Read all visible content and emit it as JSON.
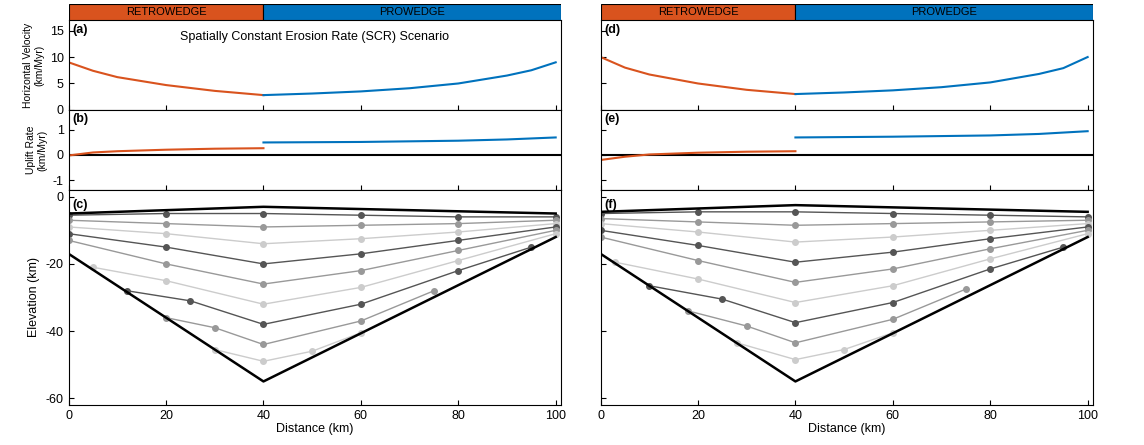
{
  "header": [
    {
      "label": "RETROWEDGE",
      "from": 0,
      "to": 40,
      "color": "#D9531E"
    },
    {
      "label": "PROWEDGE",
      "from": 40,
      "to": 101,
      "color": "#0072BD"
    }
  ],
  "chart_data": [
    {
      "type": "line",
      "title": "Spatially Constant Erosion Rate (SCR) Scenario",
      "annotations": [
        "(a)"
      ],
      "y_label": "Horizontal Velocity\n(km/Myr)",
      "xlim": [
        0,
        101
      ],
      "xticks": [
        0,
        20,
        40,
        60,
        80,
        100
      ],
      "ylim": [
        0,
        17
      ],
      "yticks": [
        0,
        5,
        10,
        15
      ],
      "tick_labels": "y",
      "series": [
        {
          "color": "#D9531E",
          "x": [
            0,
            5,
            10,
            20,
            30,
            40
          ],
          "values": [
            9,
            7.4,
            6.2,
            4.7,
            3.6,
            2.8
          ]
        },
        {
          "color": "#0072BD",
          "x": [
            40,
            50,
            60,
            70,
            80,
            90,
            95,
            100
          ],
          "values": [
            2.8,
            3.1,
            3.5,
            4.1,
            5,
            6.5,
            7.5,
            9
          ]
        }
      ]
    },
    {
      "type": "line",
      "annotations": [
        "(b)"
      ],
      "y_label": "Uplift Rate\n(km/Myr)",
      "xlim": [
        0,
        101
      ],
      "xticks": [
        0,
        20,
        40,
        60,
        80,
        100
      ],
      "ylim": [
        -1.4,
        1.8
      ],
      "yticks": [
        -1,
        0,
        1
      ],
      "tick_labels": "y",
      "series": [
        {
          "color": "#000000",
          "x": [
            0,
            101
          ],
          "values": [
            0,
            0
          ]
        },
        {
          "color": "#D9531E",
          "x": [
            0,
            5,
            10,
            20,
            30,
            40
          ],
          "values": [
            -0.02,
            0.1,
            0.15,
            0.21,
            0.25,
            0.27
          ]
        },
        {
          "color": "#0072BD",
          "x": [
            40,
            60,
            80,
            90,
            100
          ],
          "values": [
            0.5,
            0.52,
            0.57,
            0.62,
            0.7
          ]
        }
      ]
    },
    {
      "type": "line",
      "annotations": [
        "(c)"
      ],
      "x_label": "Distance (km)",
      "y_label": "Elevation (km)",
      "xlim": [
        0,
        101
      ],
      "xticks": [
        0,
        20,
        40,
        60,
        80,
        100
      ],
      "ylim": [
        -62,
        2
      ],
      "yticks": [
        -60,
        -40,
        -20,
        0
      ],
      "tick_labels": true,
      "series": [
        {
          "color": "#555555",
          "marker": "circle",
          "x": [
            0,
            20,
            40,
            60,
            80,
            100
          ],
          "values": [
            -5.5,
            -5,
            -5,
            -5.5,
            -6,
            -6
          ]
        },
        {
          "color": "#999999",
          "marker": "circle",
          "x": [
            0,
            20,
            40,
            60,
            80,
            100
          ],
          "values": [
            -7,
            -8,
            -9,
            -8.5,
            -8,
            -7
          ]
        },
        {
          "color": "#cccccc",
          "marker": "circle",
          "x": [
            0,
            20,
            40,
            60,
            80,
            100
          ],
          "values": [
            -9,
            -11,
            -14,
            -12.5,
            -10.5,
            -8
          ]
        },
        {
          "color": "#555555",
          "marker": "circle",
          "x": [
            0,
            20,
            40,
            60,
            80,
            100
          ],
          "values": [
            -11,
            -15,
            -20,
            -17,
            -13,
            -9
          ]
        },
        {
          "color": "#999999",
          "marker": "circle",
          "x": [
            0,
            20,
            40,
            60,
            80,
            100
          ],
          "values": [
            -13,
            -20,
            -26,
            -22,
            -16,
            -10
          ]
        },
        {
          "color": "#cccccc",
          "marker": "circle",
          "x": [
            5,
            20,
            40,
            60,
            80,
            100
          ],
          "values": [
            -21,
            -25,
            -32,
            -27,
            -19,
            -11
          ]
        },
        {
          "color": "#555555",
          "marker": "circle",
          "x": [
            12,
            25,
            40,
            60,
            80,
            95
          ],
          "values": [
            -28,
            -31,
            -38,
            -32,
            -22,
            -15
          ]
        },
        {
          "color": "#999999",
          "marker": "circle",
          "x": [
            20,
            30,
            40,
            60,
            75
          ],
          "values": [
            -36,
            -39,
            -44,
            -37,
            -28
          ]
        },
        {
          "color": "#cccccc",
          "marker": "circle",
          "x": [
            30,
            40,
            50,
            60
          ],
          "values": [
            -45.5,
            -49,
            -46,
            -40.5
          ]
        },
        {
          "color": "#000000",
          "x": [
            0,
            40,
            100
          ],
          "values": [
            -5,
            -3,
            -5
          ]
        },
        {
          "color": "#000000",
          "x": [
            0,
            40,
            100
          ],
          "values": [
            -17,
            -55,
            -12
          ]
        }
      ]
    },
    {
      "type": "line",
      "annotations": [
        "(d)"
      ],
      "xlim": [
        0,
        101
      ],
      "xticks": [
        0,
        20,
        40,
        60,
        80,
        100
      ],
      "ylim": [
        0,
        17
      ],
      "yticks": [
        0,
        5,
        10,
        15
      ],
      "tick_labels": false,
      "series": [
        {
          "color": "#D9531E",
          "x": [
            0,
            5,
            10,
            20,
            30,
            40
          ],
          "values": [
            10,
            8,
            6.7,
            5,
            3.8,
            3
          ]
        },
        {
          "color": "#0072BD",
          "x": [
            40,
            50,
            60,
            70,
            80,
            90,
            95,
            100
          ],
          "values": [
            3,
            3.3,
            3.7,
            4.3,
            5.2,
            6.8,
            7.9,
            10
          ]
        }
      ]
    },
    {
      "type": "line",
      "annotations": [
        "(e)"
      ],
      "xlim": [
        0,
        101
      ],
      "xticks": [
        0,
        20,
        40,
        60,
        80,
        100
      ],
      "ylim": [
        -1.4,
        1.8
      ],
      "yticks": [
        -1,
        0,
        1
      ],
      "tick_labels": false,
      "series": [
        {
          "color": "#000000",
          "x": [
            0,
            101
          ],
          "values": [
            0,
            0
          ]
        },
        {
          "color": "#D9531E",
          "x": [
            0,
            5,
            10,
            20,
            30,
            40
          ],
          "values": [
            -0.2,
            -0.07,
            0.02,
            0.09,
            0.13,
            0.15
          ]
        },
        {
          "color": "#0072BD",
          "x": [
            40,
            60,
            80,
            90,
            100
          ],
          "values": [
            0.7,
            0.73,
            0.78,
            0.84,
            0.95
          ]
        }
      ]
    },
    {
      "type": "line",
      "annotations": [
        "(f)"
      ],
      "x_label": "Distance (km)",
      "xlim": [
        0,
        101
      ],
      "xticks": [
        0,
        20,
        40,
        60,
        80,
        100
      ],
      "ylim": [
        -62,
        2
      ],
      "yticks": [
        -60,
        -40,
        -20,
        0
      ],
      "tick_labels": "x",
      "series": [
        {
          "color": "#555555",
          "marker": "circle",
          "x": [
            0,
            20,
            40,
            60,
            80,
            100
          ],
          "values": [
            -5,
            -4.5,
            -4.5,
            -5,
            -5.5,
            -6
          ]
        },
        {
          "color": "#999999",
          "marker": "circle",
          "x": [
            0,
            20,
            40,
            60,
            80,
            100
          ],
          "values": [
            -6.5,
            -7.5,
            -8.5,
            -8,
            -7.5,
            -7
          ]
        },
        {
          "color": "#cccccc",
          "marker": "circle",
          "x": [
            0,
            20,
            40,
            60,
            80,
            100
          ],
          "values": [
            -8,
            -10.5,
            -13.5,
            -12,
            -10,
            -8
          ]
        },
        {
          "color": "#555555",
          "marker": "circle",
          "x": [
            0,
            20,
            40,
            60,
            80,
            100
          ],
          "values": [
            -10,
            -14.5,
            -19.5,
            -16.5,
            -12.5,
            -9
          ]
        },
        {
          "color": "#999999",
          "marker": "circle",
          "x": [
            0,
            20,
            40,
            60,
            80,
            100
          ],
          "values": [
            -12,
            -19,
            -25.5,
            -21.5,
            -15.5,
            -10
          ]
        },
        {
          "color": "#cccccc",
          "marker": "circle",
          "x": [
            3,
            20,
            40,
            60,
            80,
            100
          ],
          "values": [
            -19.5,
            -24.5,
            -31.5,
            -26.5,
            -18.5,
            -11
          ]
        },
        {
          "color": "#555555",
          "marker": "circle",
          "x": [
            10,
            25,
            40,
            60,
            80,
            95
          ],
          "values": [
            -26.5,
            -30.5,
            -37.5,
            -31.5,
            -21.5,
            -15
          ]
        },
        {
          "color": "#999999",
          "marker": "circle",
          "x": [
            18,
            30,
            40,
            60,
            75
          ],
          "values": [
            -34,
            -38.5,
            -43.5,
            -36.5,
            -27.5
          ]
        },
        {
          "color": "#cccccc",
          "marker": "circle",
          "x": [
            28,
            40,
            50,
            60
          ],
          "values": [
            -43.5,
            -48.5,
            -45.5,
            -40.5
          ]
        },
        {
          "color": "#000000",
          "x": [
            0,
            40,
            100
          ],
          "values": [
            -4.5,
            -2.5,
            -4.5
          ]
        },
        {
          "color": "#000000",
          "x": [
            0,
            40,
            100
          ],
          "values": [
            -17,
            -55,
            -12
          ]
        }
      ]
    }
  ]
}
